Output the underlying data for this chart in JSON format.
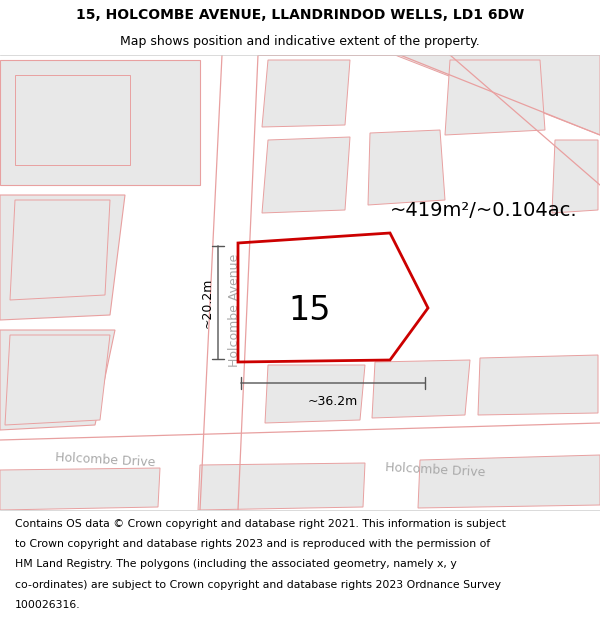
{
  "title_line1": "15, HOLCOMBE AVENUE, LLANDRINDOD WELLS, LD1 6DW",
  "title_line2": "Map shows position and indicative extent of the property.",
  "footer_lines": [
    "Contains OS data © Crown copyright and database right 2021. This information is subject",
    "to Crown copyright and database rights 2023 and is reproduced with the permission of",
    "HM Land Registry. The polygons (including the associated geometry, namely x, y",
    "co-ordinates) are subject to Crown copyright and database rights 2023 Ordnance Survey",
    "100026316."
  ],
  "area_label": "~419m²/~0.104ac.",
  "plot_number": "15",
  "dim_width": "~36.2m",
  "dim_height": "~20.2m",
  "road_label_avenue": "Holcombe Avenue",
  "road_label_drive1": "Holcombe Drive",
  "road_label_drive2": "Holcombe Drive",
  "map_bg": "#f7f7f7",
  "road_fill": "#ffffff",
  "building_fill": "#e8e8e8",
  "road_edge_color": "#e8a0a0",
  "plot_edge_color": "#cc0000",
  "road_label_color": "#aaaaaa",
  "dim_line_color": "#555555",
  "title_fontsize": 10,
  "subtitle_fontsize": 9,
  "footer_fontsize": 7.8,
  "area_fontsize": 14,
  "number_fontsize": 24,
  "dim_fontsize": 9,
  "road_fontsize": 9
}
